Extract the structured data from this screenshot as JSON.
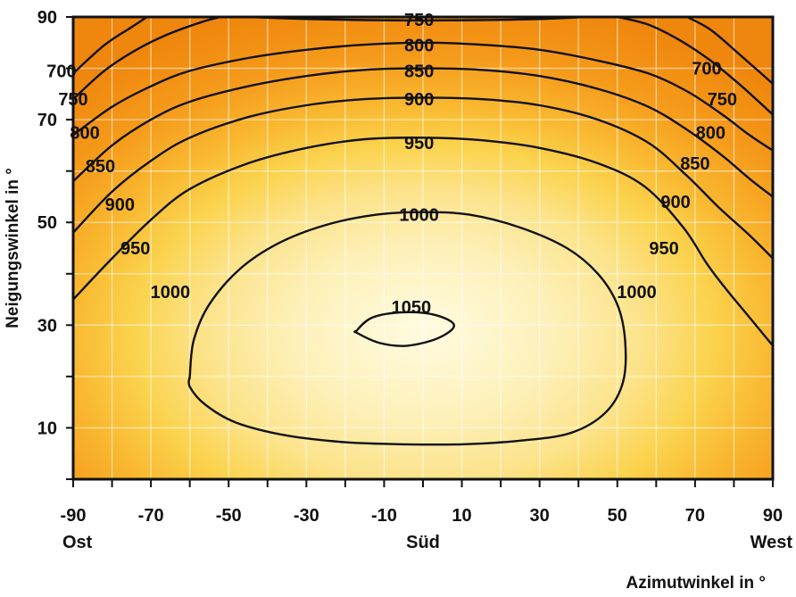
{
  "chart_data": {
    "type": "contour",
    "xlabel": "Azimutwinkel in °",
    "ylabel": "Neigungswinkel in °",
    "xlim": [
      -90,
      90
    ],
    "ylim": [
      0,
      90
    ],
    "x_ticks": [
      -90,
      -70,
      -50,
      -30,
      -10,
      10,
      30,
      50,
      70,
      90
    ],
    "y_ticks": [
      10,
      30,
      50,
      70,
      90
    ],
    "x_direction_labels": [
      {
        "x": -90,
        "label": "Ost"
      },
      {
        "x": 0,
        "label": "Süd"
      },
      {
        "x": 90,
        "label": "West"
      }
    ],
    "colors": {
      "high": "#fdf5c6",
      "mid": "#fbd24c",
      "low": "#f08c10",
      "line": "#111111",
      "grid": "#ffffff"
    },
    "contours": [
      {
        "level": 1050,
        "closed": true,
        "points": [
          [
            -17,
            29
          ],
          [
            -13,
            31.5
          ],
          [
            -5,
            32.5
          ],
          [
            3,
            32
          ],
          [
            8,
            30
          ],
          [
            4,
            27.5
          ],
          [
            -4,
            26
          ],
          [
            -11,
            26.5
          ],
          [
            -17,
            28.5
          ]
        ],
        "labels": [
          {
            "x": -3,
            "y": 33.5,
            "text": "1050"
          }
        ]
      },
      {
        "level": 1000,
        "closed": true,
        "points": [
          [
            -60,
            20
          ],
          [
            -59,
            27
          ],
          [
            -55,
            34
          ],
          [
            -47,
            41
          ],
          [
            -37,
            46
          ],
          [
            -25,
            49.5
          ],
          [
            -12,
            51.5
          ],
          [
            0,
            52
          ],
          [
            12,
            51.5
          ],
          [
            25,
            49
          ],
          [
            37,
            45
          ],
          [
            45,
            40
          ],
          [
            50,
            34
          ],
          [
            52,
            27
          ],
          [
            51.5,
            19
          ],
          [
            47,
            13
          ],
          [
            38,
            9
          ],
          [
            25,
            7.5
          ],
          [
            10,
            6.8
          ],
          [
            -5,
            6.8
          ],
          [
            -20,
            7.2
          ],
          [
            -35,
            8.5
          ],
          [
            -48,
            11
          ],
          [
            -56,
            14.5
          ],
          [
            -60,
            18
          ],
          [
            -60,
            20
          ]
        ],
        "labels": [
          {
            "x": -1,
            "y": 51.5,
            "text": "1000"
          },
          {
            "x": -65,
            "y": 36.5,
            "text": "1000"
          },
          {
            "x": 55,
            "y": 36.5,
            "text": "1000"
          }
        ]
      },
      {
        "level": 950,
        "closed": false,
        "points": [
          [
            -90,
            35
          ],
          [
            -80,
            43
          ],
          [
            -70,
            50.5
          ],
          [
            -60,
            56.5
          ],
          [
            -45,
            61.5
          ],
          [
            -30,
            64.5
          ],
          [
            -15,
            66.2
          ],
          [
            0,
            66.5
          ],
          [
            15,
            66
          ],
          [
            30,
            64.5
          ],
          [
            45,
            61.5
          ],
          [
            57,
            57
          ],
          [
            67,
            49
          ],
          [
            73,
            42
          ],
          [
            78,
            37
          ],
          [
            84,
            31.5
          ],
          [
            90,
            26
          ]
        ],
        "labels": [
          {
            "x": -1,
            "y": 65.5,
            "text": "950"
          },
          {
            "x": -74,
            "y": 45,
            "text": "950"
          },
          {
            "x": 62,
            "y": 45,
            "text": "950"
          }
        ]
      },
      {
        "level": 900,
        "closed": false,
        "points": [
          [
            -90,
            48
          ],
          [
            -80,
            56
          ],
          [
            -70,
            62
          ],
          [
            -60,
            66.5
          ],
          [
            -45,
            70.5
          ],
          [
            -30,
            72.8
          ],
          [
            -15,
            74
          ],
          [
            0,
            74.3
          ],
          [
            15,
            74
          ],
          [
            30,
            72.8
          ],
          [
            45,
            70
          ],
          [
            58,
            65.5
          ],
          [
            68,
            59
          ],
          [
            76,
            53
          ],
          [
            84,
            47.5
          ],
          [
            90,
            43
          ]
        ],
        "labels": [
          {
            "x": -1,
            "y": 74,
            "text": "900"
          },
          {
            "x": -78,
            "y": 53.5,
            "text": "900"
          },
          {
            "x": 65,
            "y": 54,
            "text": "900"
          }
        ]
      },
      {
        "level": 850,
        "closed": false,
        "points": [
          [
            -90,
            58
          ],
          [
            -80,
            65
          ],
          [
            -70,
            70
          ],
          [
            -60,
            73.5
          ],
          [
            -45,
            76.5
          ],
          [
            -30,
            78.5
          ],
          [
            -15,
            79.7
          ],
          [
            0,
            80
          ],
          [
            15,
            79.7
          ],
          [
            30,
            78.5
          ],
          [
            45,
            76
          ],
          [
            58,
            72.5
          ],
          [
            68,
            68
          ],
          [
            77,
            63
          ],
          [
            84,
            58.5
          ],
          [
            90,
            55
          ]
        ],
        "labels": [
          {
            "x": -1,
            "y": 79.5,
            "text": "850"
          },
          {
            "x": -83,
            "y": 61,
            "text": "850"
          },
          {
            "x": 70,
            "y": 61.5,
            "text": "850"
          }
        ]
      },
      {
        "level": 800,
        "closed": false,
        "points": [
          [
            -90,
            67
          ],
          [
            -80,
            72.5
          ],
          [
            -70,
            76.5
          ],
          [
            -60,
            79.5
          ],
          [
            -45,
            82
          ],
          [
            -30,
            83.6
          ],
          [
            -15,
            84.6
          ],
          [
            0,
            85
          ],
          [
            15,
            84.6
          ],
          [
            30,
            83.6
          ],
          [
            45,
            81.5
          ],
          [
            58,
            79
          ],
          [
            68,
            75.5
          ],
          [
            77,
            71
          ],
          [
            84,
            67
          ],
          [
            90,
            64
          ]
        ],
        "labels": [
          {
            "x": -1,
            "y": 84.5,
            "text": "800"
          },
          {
            "x": -87,
            "y": 67.5,
            "text": "800"
          },
          {
            "x": 74,
            "y": 67.5,
            "text": "800"
          }
        ]
      },
      {
        "level": 750,
        "closed": false,
        "points": [
          [
            -90,
            74
          ],
          [
            -82,
            79.5
          ],
          [
            -74,
            83.5
          ],
          [
            -66,
            86.5
          ],
          [
            -57,
            89
          ],
          [
            -52,
            90
          ]
        ],
        "labels": [
          {
            "x": -1,
            "y": 89.5,
            "text": "750"
          },
          {
            "x": -90,
            "y": 74,
            "text": "750"
          },
          {
            "x": 77,
            "y": 74,
            "text": "750"
          }
        ]
      },
      {
        "level": 750,
        "closed": false,
        "points": [
          [
            -45,
            90
          ],
          [
            -30,
            89.6
          ],
          [
            -15,
            89.4
          ],
          [
            0,
            89.3
          ],
          [
            15,
            89.4
          ],
          [
            30,
            89.6
          ],
          [
            42,
            90
          ]
        ],
        "labels": []
      },
      {
        "level": 750,
        "closed": false,
        "points": [
          [
            50,
            90
          ],
          [
            58,
            88.5
          ],
          [
            66,
            85.5
          ],
          [
            74,
            81.5
          ],
          [
            82,
            76.5
          ],
          [
            90,
            71
          ]
        ],
        "labels": []
      },
      {
        "level": 700,
        "closed": false,
        "points": [
          [
            -90,
            79
          ],
          [
            -82,
            84.5
          ],
          [
            -75,
            88
          ],
          [
            -71,
            90
          ]
        ],
        "labels": [
          {
            "x": -93,
            "y": 79.5,
            "text": "700"
          },
          {
            "x": 73,
            "y": 80,
            "text": "700"
          }
        ]
      },
      {
        "level": 700,
        "closed": false,
        "points": [
          [
            68,
            90
          ],
          [
            74,
            87.5
          ],
          [
            81,
            83
          ],
          [
            90,
            77
          ]
        ],
        "labels": []
      }
    ]
  }
}
